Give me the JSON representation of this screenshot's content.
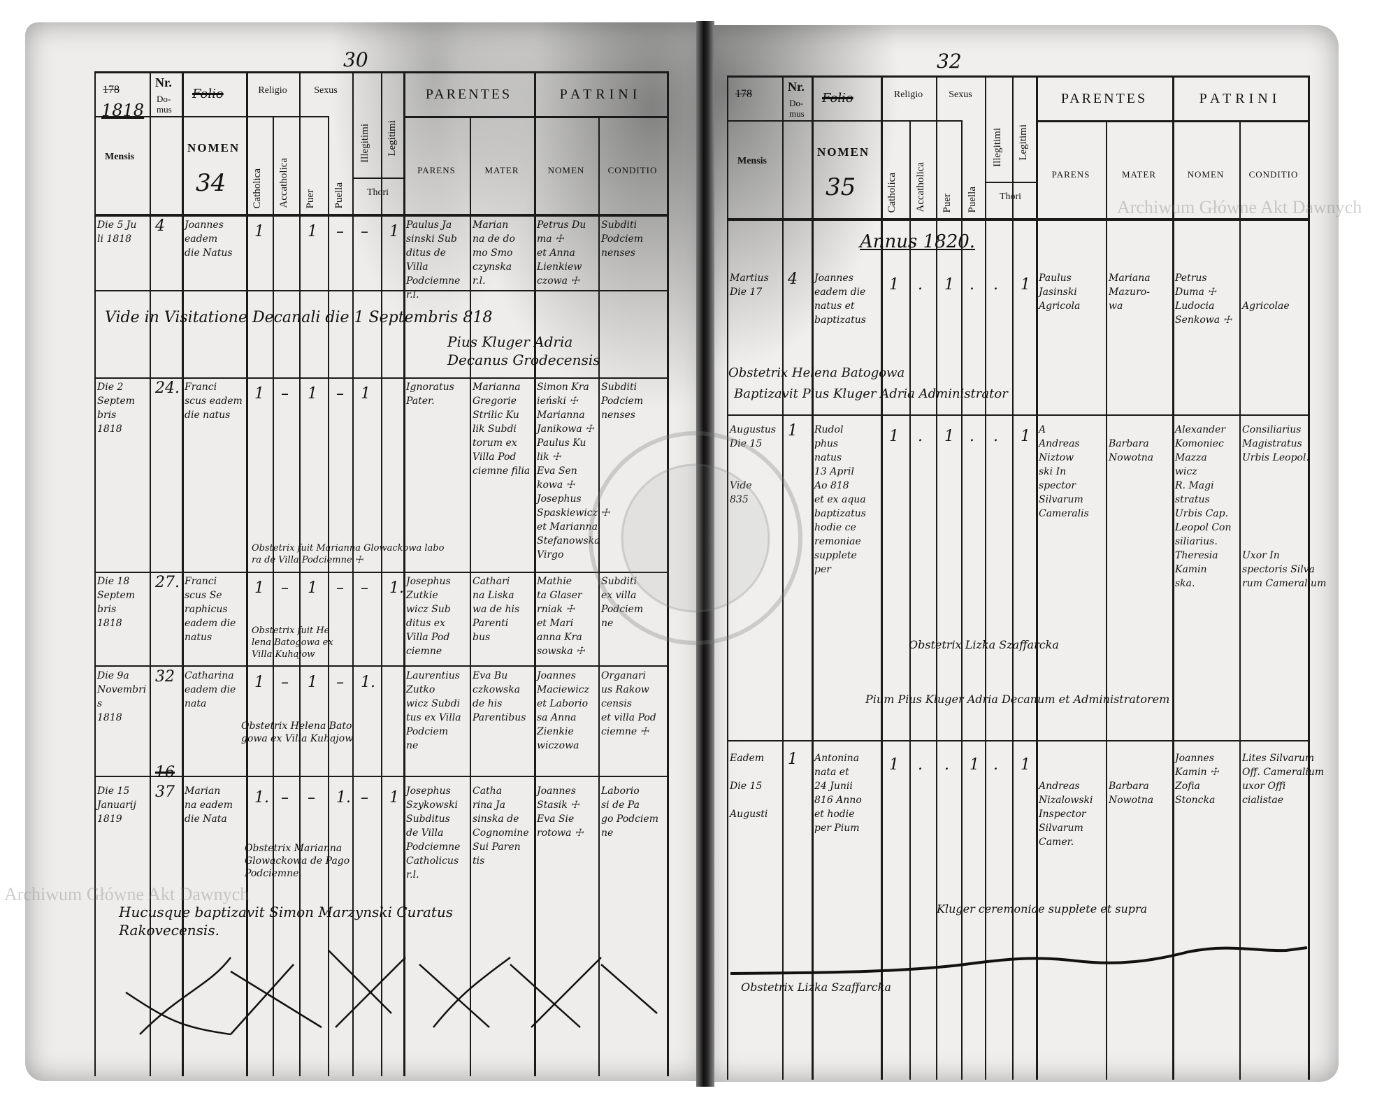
{
  "watermark": "Archiwum Główne Akt Dawnych",
  "left": {
    "page_number": "30",
    "header": {
      "year": "1818",
      "year_crossed": "178",
      "nr": "Nr.",
      "domus": "Do-\nmus",
      "folio_crossed": "Folio",
      "nomen": "NOMEN",
      "folio_number": "34",
      "mensis": "Mensis",
      "religio": "Religio",
      "catholica": "Catholica",
      "accatholica": "Accatholica",
      "sexus": "Sexus",
      "puer": "Puer",
      "puella": "Puella",
      "illegitimi": "Illegitimi",
      "legitimi": "Legitimi",
      "thori": "Thori",
      "parentes": "PARENTES",
      "patrini": "PATRINI",
      "parens": "PARENS",
      "mater": "MATER",
      "patrini_nomen": "NOMEN",
      "conditio": "CONDITIO"
    },
    "entries": [
      {
        "mensis": "Die 5 Ju\nli 1818",
        "domus": "4",
        "nomen": "Joannes\neadem\ndie Natus",
        "marks": [
          "1",
          "",
          "1",
          "–",
          "–",
          "1"
        ],
        "parens": "Paulus Ja\nsinski Sub\nditus de Villa\nPodciemne\nr.l.",
        "mater": "Marian\nna de do\nmo Smo\nczynska\nr.l.",
        "patrini": "Petrus Du\nma ☩\net Anna\nLienkiew\nczowa ☩",
        "conditio": "Subditi\nPodciem\nnenses"
      },
      {
        "mensis": "Die 2\nSeptem\nbris\n1818",
        "domus": "24.",
        "nomen": "Franci\nscus eadem\ndie natus",
        "marks": [
          "1",
          "–",
          "1",
          "–",
          "1",
          ""
        ],
        "parens": "Ignoratus\nPater.",
        "mater": "Marianna\nGregorie\nStrilic Ku\nlik Subdi\ntorum ex\nVilla Pod\nciemne filia",
        "patrini": "Simon Kra\nieński ☩\nMarianna\nJanikowa ☩\nPaulus Ku\nlik ☩\nEva Sen\nkowa ☩\nJosephus\nSpaskiewicz ☩\net Marianna\nStefanowska\nVirgo",
        "conditio": "Subditi\nPodciem\nnenses"
      },
      {
        "mensis": "Die 18\nSeptem\nbris\n1818",
        "domus": "27.",
        "nomen": "Franci\nscus Se\nraphicus\neadem die\nnatus",
        "marks": [
          "1",
          "–",
          "1",
          "–",
          "–",
          "1."
        ],
        "parens": "Josephus\nZutkie\nwicz Sub\nditus ex\nVilla Pod\nciemne",
        "mater": "Cathari\nna Liska\nwa de his\nParenti\nbus",
        "patrini": "Mathie\nta Glaser\nrniak ☩\net Mari\nanna Kra\nsowska ☩",
        "conditio": "Subditi\nex villa\nPodciem\nne"
      },
      {
        "mensis": "Die 9a\nNovembris\n1818",
        "domus": "32",
        "nomen": "Catharina\neadem die\nnata",
        "marks": [
          "1",
          "–",
          "1",
          "–",
          "1.",
          ""
        ],
        "parens": "Laurentius\nZutko\nwicz Subdi\ntus ex Villa\nPodciem\nne",
        "mater": "Eva Bu\nczkowska\nde his\nParentibus",
        "patrini": "Joannes\nMaciewicz\net Laborio\nsa Anna\nZienkie\nwiczowa",
        "conditio": "Organari\nus Rakow\ncensis\net villa Pod\nciemne ☩"
      },
      {
        "mensis": "Die 15\nJanuarij\n1819",
        "domus": "37",
        "domus_crossed": "16",
        "nomen": "Marian\nna eadem\ndie Nata",
        "marks": [
          "1.",
          "–",
          "–",
          "1.",
          "–",
          "1"
        ],
        "parens": "Josephus\nSzykowski\nSubditus\nde Villa\nPodciemne\nCatholicus\nr.l.",
        "mater": "Catha\nrina Ja\nsinska de\nCognomine\nSui Paren\ntis",
        "patrini": "Joannes\nStasik ☩\nEva Sie\nrotowa ☩",
        "conditio": "Laborio\nsi de Pa\ngo Podciem\nne"
      }
    ],
    "notes": [
      "Vide in Visitatione Decanali die 1 Septembris 818",
      "Pius Kluger Adria\nDecanus Grodecensis",
      "Obstetrix fuit Marianna Glowackowa labo\nra de Villa Podciemne ☩",
      "Obstetrix fuit He\nlena Batogowa ex\nVilla Kuhajow",
      "Obstetrix Helena Bato\ngowa ex Villa Kuhajow",
      "Obstetrix Marianna\nGlowackowa de Pago\nPodciemne.",
      "Hucusque baptizavit Simon Marzynski Curatus\nRakovecensis."
    ]
  },
  "right": {
    "page_number": "32",
    "header": {
      "year": "178",
      "year_crossed": "178",
      "nr": "Nr.",
      "domus": "Do-\nmus",
      "folio_crossed": "Folio",
      "nomen": "NOMEN",
      "folio_number": "35",
      "mensis": "Mensis",
      "religio": "Religio",
      "catholica": "Catholica",
      "accatholica": "Accatholica",
      "sexus": "Sexus",
      "puer": "Puer",
      "puella": "Puella",
      "illegitimi": "Illegitimi",
      "legitimi": "Legitimi",
      "thori": "Thori",
      "parentes": "PARENTES",
      "patrini": "PATRINI",
      "parens": "PARENS",
      "mater": "MATER",
      "patrini_nomen": "NOMEN",
      "conditio": "CONDITIO"
    },
    "annus": "Annus 1820.",
    "entries": [
      {
        "mensis": "Martius\nDie 17",
        "domus": "4",
        "nomen": "Joannes\neadem die\nnatus et\nbaptizatus",
        "marks": [
          "1",
          ".",
          "1",
          ".",
          ".",
          "1"
        ],
        "parens": "Paulus\nJasinski\nAgricola",
        "mater": "Mariana\nMazuro-\nwa",
        "patrini": "Petrus\nDuma ☩\nLudocia\nSenkowa ☩",
        "conditio": "\n\nAgricolae"
      },
      {
        "mensis": "Augustus\nDie 15\n\n\nVide\n835",
        "domus": "1",
        "nomen": "Rudol\nphus\nnatus\n13 April\nAo 818\net ex aqua\nbaptizatus\nhodie ce\nremoniae\nsupplete\nper",
        "marks": [
          "1",
          ".",
          "1",
          ".",
          ".",
          "1"
        ],
        "parens": "A\nAndreas\nNiztow\nski In\nspector\nSilvarum\nCameralis",
        "mater": "\nBarbara\nNowotna",
        "patrini": "Alexander\nKomoniec\nMazza\nwicz\nR. Magi\nstratus\nUrbis Cap.\nLeopol Con\nsiliarius.\nTheresia\nKamin\nska.",
        "conditio": "Consiliarius\nMagistratus\nUrbis Leopol.\n\n\n\n\n\n\nUxor In\nspectoris Silva\nrum Cameralium"
      },
      {
        "mensis": "Eadem\n\nDie 15\n\nAugusti",
        "domus": "1",
        "nomen": "Antonina\nnata et\n24 Junii\n816 Anno\net hodie\nper Pium",
        "marks": [
          "1",
          ".",
          ".",
          "1",
          ".",
          "1"
        ],
        "parens": "\n\nAndreas\nNizalowski\nInspector\nSilvarum Camer.",
        "mater": "\n\nBarbara\nNowotna",
        "patrini": "Joannes\nKamin ☩\nZofia\nStoncka",
        "conditio": "Lites Silvarum\nOff. Cameralium\nuxor Offi\ncialistae"
      }
    ],
    "notes": [
      "Obstetrix Helena Batogowa",
      "Baptizavit Pius Kluger Adria Administrator",
      "Obstetrix Lizka Szaffarcka",
      "Pium Pius Kluger Adria Decanum et Administratorem",
      "Kluger ceremoniae supplete et supra",
      "Obstetrix Lizka Szaffarcka"
    ]
  }
}
